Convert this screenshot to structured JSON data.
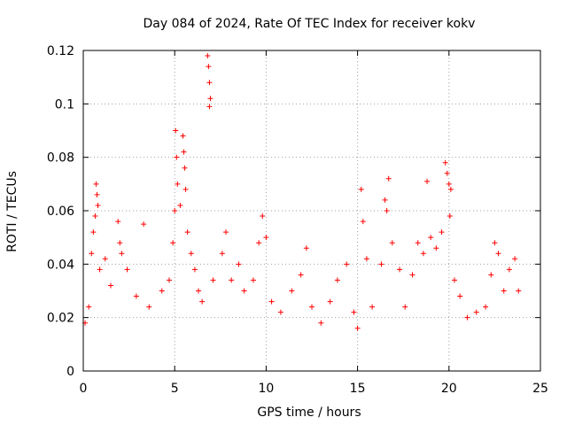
{
  "chart_data": {
    "type": "scatter",
    "title": "Day 084 of 2024, Rate Of TEC Index for receiver kokv",
    "xlabel": "GPS time / hours",
    "ylabel": "ROTI / TECUs",
    "xlim": [
      0,
      25
    ],
    "ylim": [
      0,
      0.12
    ],
    "xticks": [
      "0",
      "5",
      "10",
      "15",
      "20",
      "25"
    ],
    "yticks": [
      "0",
      "0.02",
      "0.04",
      "0.06",
      "0.08",
      "0.1",
      "0.12"
    ],
    "xtick_values": [
      0,
      5,
      10,
      15,
      20,
      25
    ],
    "ytick_values": [
      0,
      0.02,
      0.04,
      0.06,
      0.08,
      0.1,
      0.12
    ],
    "grid": true,
    "marker": "+",
    "color": "#ff0000",
    "series": [
      {
        "name": "ROTI",
        "points": [
          [
            0.1,
            0.018
          ],
          [
            0.3,
            0.024
          ],
          [
            0.45,
            0.044
          ],
          [
            0.55,
            0.052
          ],
          [
            0.65,
            0.058
          ],
          [
            0.7,
            0.07
          ],
          [
            0.75,
            0.066
          ],
          [
            0.8,
            0.062
          ],
          [
            0.9,
            0.038
          ],
          [
            1.2,
            0.042
          ],
          [
            1.5,
            0.032
          ],
          [
            1.9,
            0.056
          ],
          [
            2.0,
            0.048
          ],
          [
            2.1,
            0.044
          ],
          [
            2.4,
            0.038
          ],
          [
            2.9,
            0.028
          ],
          [
            3.3,
            0.055
          ],
          [
            3.6,
            0.024
          ],
          [
            4.3,
            0.03
          ],
          [
            4.7,
            0.034
          ],
          [
            4.9,
            0.048
          ],
          [
            5.0,
            0.06
          ],
          [
            5.05,
            0.09
          ],
          [
            5.1,
            0.08
          ],
          [
            5.15,
            0.07
          ],
          [
            5.3,
            0.062
          ],
          [
            5.45,
            0.088
          ],
          [
            5.5,
            0.082
          ],
          [
            5.55,
            0.076
          ],
          [
            5.6,
            0.068
          ],
          [
            5.7,
            0.052
          ],
          [
            5.9,
            0.044
          ],
          [
            6.1,
            0.038
          ],
          [
            6.3,
            0.03
          ],
          [
            6.5,
            0.026
          ],
          [
            6.8,
            0.118
          ],
          [
            6.85,
            0.114
          ],
          [
            6.9,
            0.108
          ],
          [
            6.95,
            0.102
          ],
          [
            6.9,
            0.099
          ],
          [
            7.1,
            0.034
          ],
          [
            7.6,
            0.044
          ],
          [
            7.8,
            0.052
          ],
          [
            8.1,
            0.034
          ],
          [
            8.5,
            0.04
          ],
          [
            8.8,
            0.03
          ],
          [
            9.3,
            0.034
          ],
          [
            9.6,
            0.048
          ],
          [
            9.8,
            0.058
          ],
          [
            10.0,
            0.05
          ],
          [
            10.3,
            0.026
          ],
          [
            10.8,
            0.022
          ],
          [
            11.4,
            0.03
          ],
          [
            11.9,
            0.036
          ],
          [
            12.2,
            0.046
          ],
          [
            12.5,
            0.024
          ],
          [
            13.0,
            0.018
          ],
          [
            13.5,
            0.026
          ],
          [
            13.9,
            0.034
          ],
          [
            14.4,
            0.04
          ],
          [
            14.8,
            0.022
          ],
          [
            15.0,
            0.016
          ],
          [
            15.2,
            0.068
          ],
          [
            15.3,
            0.056
          ],
          [
            15.5,
            0.042
          ],
          [
            15.8,
            0.024
          ],
          [
            16.3,
            0.04
          ],
          [
            16.5,
            0.064
          ],
          [
            16.6,
            0.06
          ],
          [
            16.7,
            0.072
          ],
          [
            16.9,
            0.048
          ],
          [
            17.3,
            0.038
          ],
          [
            17.6,
            0.024
          ],
          [
            18.0,
            0.036
          ],
          [
            18.3,
            0.048
          ],
          [
            18.6,
            0.044
          ],
          [
            18.8,
            0.071
          ],
          [
            19.0,
            0.05
          ],
          [
            19.3,
            0.046
          ],
          [
            19.6,
            0.052
          ],
          [
            19.8,
            0.078
          ],
          [
            19.9,
            0.074
          ],
          [
            20.0,
            0.07
          ],
          [
            20.1,
            0.068
          ],
          [
            20.05,
            0.058
          ],
          [
            20.3,
            0.034
          ],
          [
            20.6,
            0.028
          ],
          [
            21.0,
            0.02
          ],
          [
            21.5,
            0.022
          ],
          [
            22.0,
            0.024
          ],
          [
            22.3,
            0.036
          ],
          [
            22.5,
            0.048
          ],
          [
            22.7,
            0.044
          ],
          [
            23.0,
            0.03
          ],
          [
            23.3,
            0.038
          ],
          [
            23.6,
            0.042
          ],
          [
            23.8,
            0.03
          ]
        ]
      }
    ]
  }
}
